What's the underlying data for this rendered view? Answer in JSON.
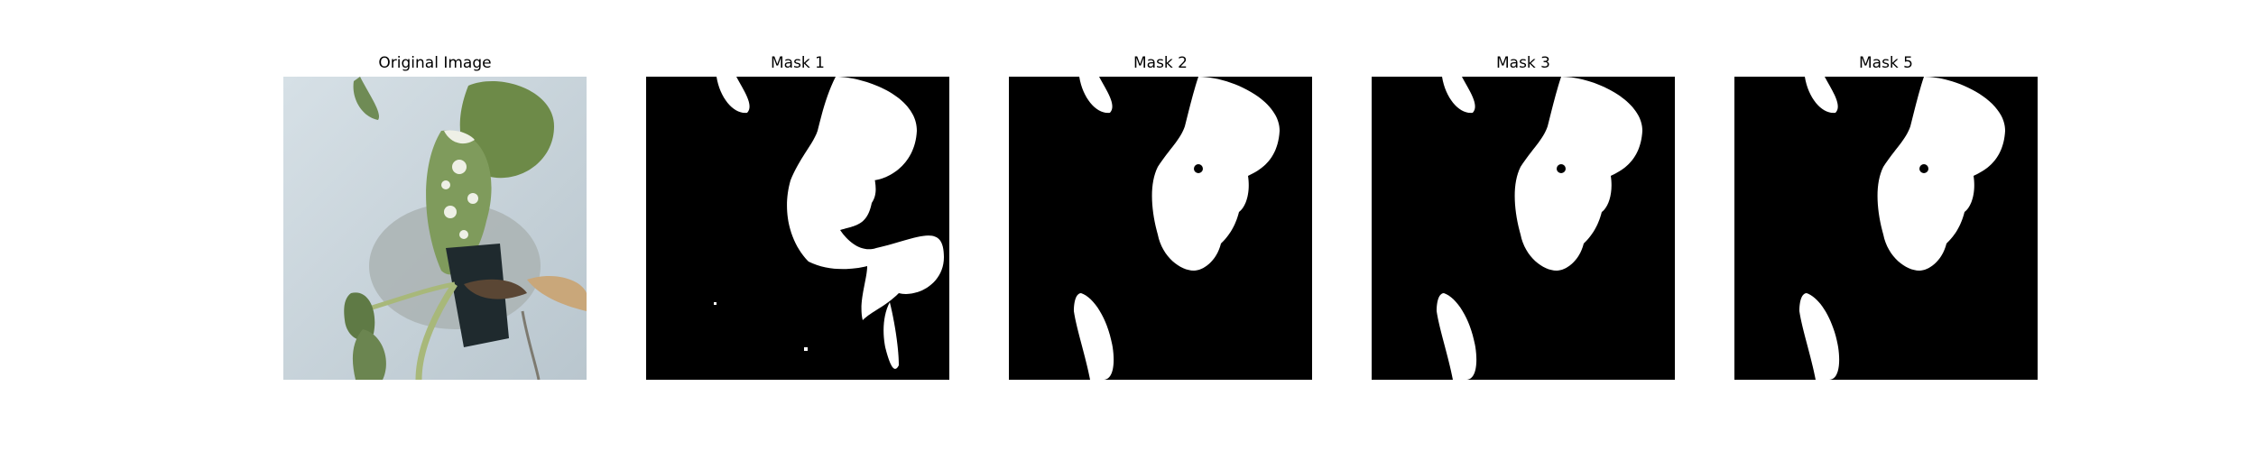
{
  "figure": {
    "panels": [
      {
        "title": "Original Image",
        "kind": "photo"
      },
      {
        "title": "Mask 1",
        "kind": "mask"
      },
      {
        "title": "Mask 2",
        "kind": "mask"
      },
      {
        "title": "Mask 3",
        "kind": "mask"
      },
      {
        "title": "Mask 5",
        "kind": "mask"
      }
    ],
    "colors": {
      "background": "#ffffff",
      "mask_foreground": "#ffffff",
      "mask_background": "#000000",
      "photo_wall": "#c9d4db",
      "leaf_dark": "#5f7a45",
      "leaf_light": "#8fa86c",
      "variegation": "#eef0e6",
      "pot": "#1f2a2e",
      "stem": "#a8b87a"
    }
  }
}
